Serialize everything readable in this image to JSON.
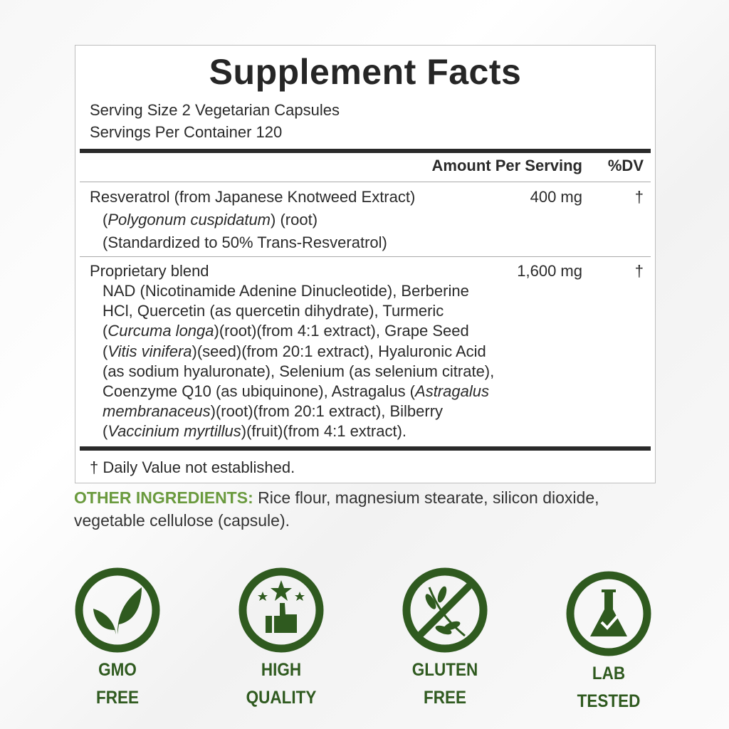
{
  "title": "Supplement Facts",
  "serving_size": "Serving Size 2 Vegetarian Capsules",
  "servings_per_container": "Servings Per Container 120",
  "header": {
    "amount": "Amount Per Serving",
    "dv": "%DV"
  },
  "rows": [
    {
      "lines": [
        [
          {
            "t": "Resveratrol (from Japanese Knotweed Extract)",
            "i": false
          }
        ],
        [
          {
            "t": "(",
            "i": false
          },
          {
            "t": "Polygonum cuspidatum",
            "i": true
          },
          {
            "t": ") (root)",
            "i": false
          }
        ],
        [
          {
            "t": "(Standardized to 50% Trans-Resveratrol)",
            "i": false
          }
        ]
      ],
      "amount": "400 mg",
      "dv": "†"
    },
    {
      "lines": [
        [
          {
            "t": "Proprietary blend",
            "i": false
          }
        ],
        [
          {
            "t": "NAD (Nicotinamide Adenine Dinucleotide), Berberine",
            "i": false
          }
        ],
        [
          {
            "t": "HCl, Quercetin (as quercetin dihydrate), Turmeric",
            "i": false
          }
        ],
        [
          {
            "t": "(",
            "i": false
          },
          {
            "t": "Curcuma longa",
            "i": true
          },
          {
            "t": ")(root)(from 4:1 extract), Grape Seed",
            "i": false
          }
        ],
        [
          {
            "t": "(",
            "i": false
          },
          {
            "t": "Vitis vinifera",
            "i": true
          },
          {
            "t": ")(seed)(from 20:1 extract), Hyaluronic Acid",
            "i": false
          }
        ],
        [
          {
            "t": "(as sodium hyaluronate), Selenium (as selenium citrate),",
            "i": false
          }
        ],
        [
          {
            "t": "Coenzyme Q10 (as ubiquinone), Astragalus (",
            "i": false
          },
          {
            "t": "Astragalus",
            "i": true
          }
        ],
        [
          {
            "t": "membranaceus",
            "i": true
          },
          {
            "t": ")(root)(from 20:1 extract), Bilberry",
            "i": false
          }
        ],
        [
          {
            "t": "(",
            "i": false
          },
          {
            "t": "Vaccinium myrtillus",
            "i": true
          },
          {
            "t": ")(fruit)(from 4:1 extract).",
            "i": false
          }
        ]
      ],
      "amount": "1,600 mg",
      "dv": "†"
    }
  ],
  "footnote": "† Daily Value not established.",
  "other_ingredients": {
    "label": "OTHER INGREDIENTS:",
    "line1": " Rice flour, magnesium stearate, silicon dioxide,",
    "line2": "vegetable cellulose (capsule)."
  },
  "badges": [
    {
      "icon": "leaf-icon",
      "l1": "GMO",
      "l2": "FREE"
    },
    {
      "icon": "thumbs-up-stars-icon",
      "l1": "HIGH",
      "l2": "QUALITY"
    },
    {
      "icon": "no-wheat-icon",
      "l1": "GLUTEN",
      "l2": "FREE"
    },
    {
      "icon": "flask-check-icon",
      "l1": "LAB",
      "l2": "TESTED"
    }
  ],
  "colors": {
    "dark_green": "#2f5a1f",
    "light_green": "#6a9a3e"
  }
}
